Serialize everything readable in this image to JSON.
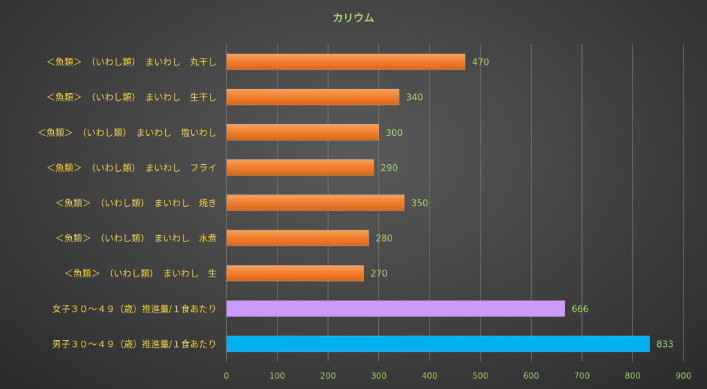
{
  "chart_data": {
    "type": "bar",
    "orientation": "horizontal",
    "title": "カリウム",
    "categories": [
      "＜魚類＞　（いわし類）　まいわし　丸干し",
      "＜魚類＞　（いわし類）　まいわし　生干し",
      "＜魚類＞　（いわし類）　まいわし　塩いわし",
      "＜魚類＞　（いわし類）　まいわし　フライ",
      "＜魚類＞　（いわし類）　まいわし　焼き",
      "＜魚類＞　（いわし類）　まいわし　水煮",
      "＜魚類＞　（いわし類）　まいわし　生",
      "女子３０～４９（歳）推進量/１食あたり",
      "男子３０～４９（歳）推進量/１食あたり"
    ],
    "values": [
      470,
      340,
      300,
      290,
      350,
      280,
      270,
      666,
      833
    ],
    "bar_colors": [
      "#f07f2e",
      "#f07f2e",
      "#f07f2e",
      "#f07f2e",
      "#f07f2e",
      "#f07f2e",
      "#f07f2e",
      "#cc99ff",
      "#00b0f0"
    ],
    "xlim": [
      0,
      900
    ],
    "xticks": [
      0,
      100,
      200,
      300,
      400,
      500,
      600,
      700,
      800,
      900
    ],
    "grid": true,
    "legend": "none",
    "colors": {
      "title": "#a6d96a",
      "category_label": "#f2d04a",
      "tick_label": "#9ccc65",
      "data_label": "#a6d96a"
    }
  }
}
